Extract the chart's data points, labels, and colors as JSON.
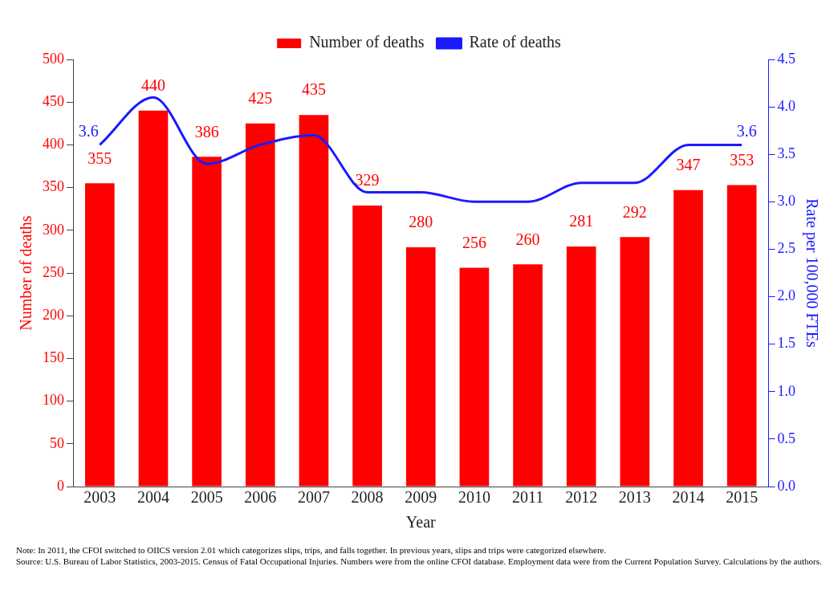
{
  "chart_data": {
    "type": "bar",
    "xlabel": "Year",
    "ylabel": "Number of deaths",
    "y2label": "Rate per 100,000 FTEs",
    "categories": [
      "2003",
      "2004",
      "2005",
      "2006",
      "2007",
      "2008",
      "2009",
      "2010",
      "2011",
      "2012",
      "2013",
      "2014",
      "2015"
    ],
    "series": [
      {
        "name": "Number of deaths",
        "type": "bar",
        "color": "#ff0000",
        "values": [
          355,
          440,
          386,
          425,
          435,
          329,
          280,
          256,
          260,
          281,
          292,
          347,
          353
        ],
        "data_labels": true
      },
      {
        "name": "Rate of deaths",
        "type": "line",
        "axis": "y2",
        "color": "#1a1aff",
        "values": [
          3.6,
          4.1,
          3.4,
          3.6,
          3.7,
          3.1,
          3.1,
          3.0,
          3.0,
          3.2,
          3.2,
          3.6,
          3.6
        ],
        "value_labels": [
          "3.6",
          null,
          null,
          null,
          null,
          null,
          null,
          null,
          null,
          null,
          null,
          null,
          "3.6"
        ],
        "marker": "none"
      }
    ],
    "ylim": [
      0,
      500
    ],
    "yticks": [
      0,
      50,
      100,
      150,
      200,
      250,
      300,
      350,
      400,
      450,
      500
    ],
    "y2lim": [
      0,
      4.5
    ],
    "y2ticks": [
      {
        "value": 0,
        "label": "0.0"
      },
      {
        "value": 0.5,
        "label": "0.5"
      },
      {
        "value": 1,
        "label": "1.0"
      },
      {
        "value": 1.5,
        "label": "1.5"
      },
      {
        "value": 2,
        "label": "2.0"
      },
      {
        "value": 2.5,
        "label": "2.5"
      },
      {
        "value": 3,
        "label": "3.0"
      },
      {
        "value": 3.5,
        "label": "3.5"
      },
      {
        "value": 4,
        "label": "4.0"
      },
      {
        "value": 4.5,
        "label": "4.5"
      }
    ],
    "grid": false,
    "legend": "top",
    "annotations": [
      "Note: In 2011, the CFOI switched to OIICS version 2.01 which categorizes slips, trips, and falls together. In previous years, slips and trips were categorized elsewhere.",
      "Source: U.S. Bureau of Labor Statistics, 2003-2015. Census of Fatal Occupational Injuries. Numbers were from the online CFOI database. Employment data were from the Current Population Survey. Calculations by the authors."
    ]
  }
}
